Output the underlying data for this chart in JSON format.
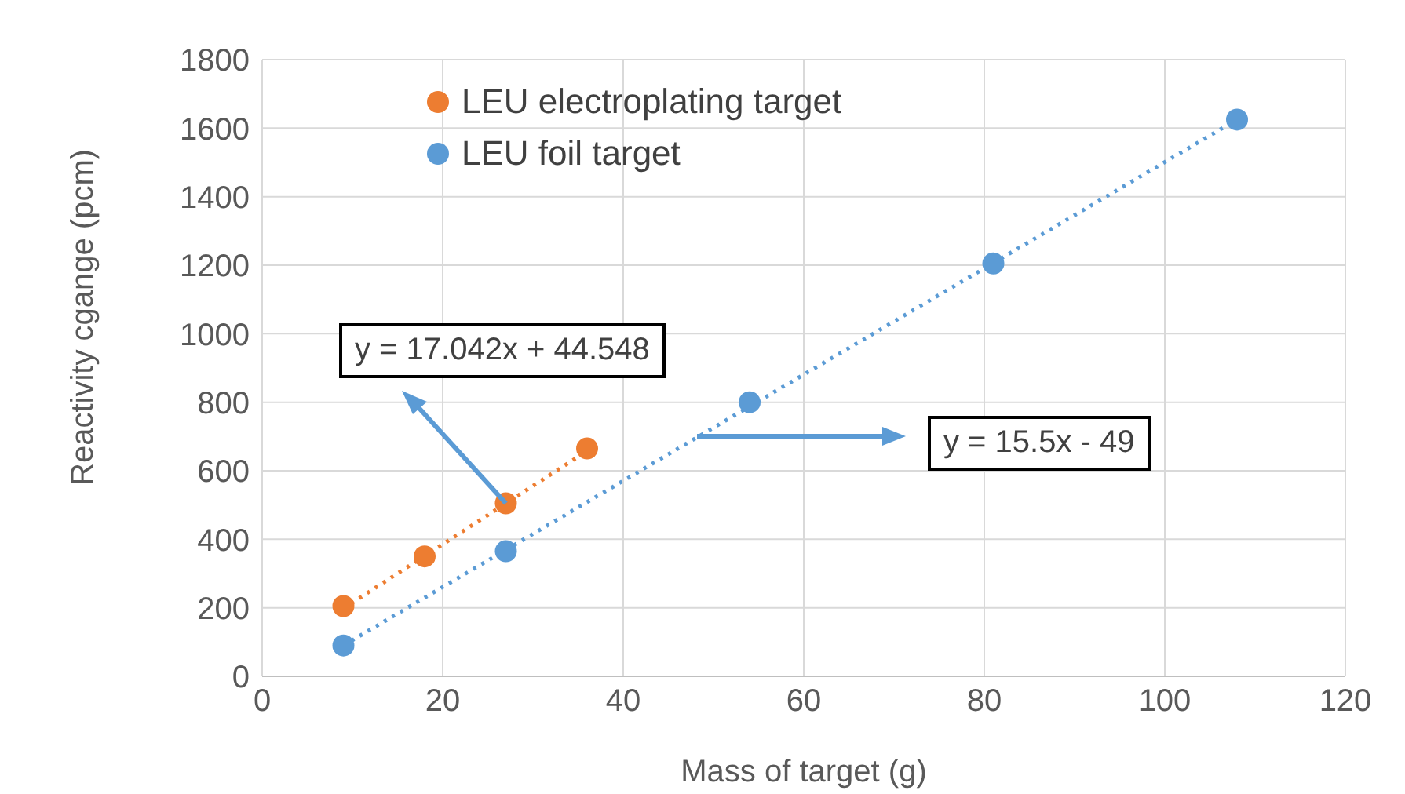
{
  "chart_data": {
    "type": "scatter",
    "xlabel": "Mass of target (g)",
    "ylabel": "Reactivity  cgange (pcm)",
    "xlim": [
      0,
      120
    ],
    "xticks": [
      0,
      20,
      40,
      60,
      80,
      100,
      120
    ],
    "ylim": [
      0,
      1800
    ],
    "yticks": [
      0,
      200,
      400,
      600,
      800,
      1000,
      1200,
      1400,
      1600,
      1800
    ],
    "grid": true,
    "legend": "top left",
    "marker": "circle",
    "series": [
      {
        "name": "LEU electroplating target",
        "color": "#ed7d31",
        "x": [
          9,
          18,
          27,
          36
        ],
        "values": [
          205,
          350,
          505,
          665
        ]
      },
      {
        "name": "LEU foil target",
        "color": "#5b9bd5",
        "x": [
          9,
          27,
          54,
          81,
          108
        ],
        "values": [
          90,
          365,
          800,
          1205,
          1625
        ]
      },
      {
        "type": "line",
        "color": "#ed7d31",
        "line_style": "dotted",
        "marker": "none",
        "x": [
          9,
          36
        ],
        "values": [
          198,
          658
        ]
      },
      {
        "type": "line",
        "color": "#5b9bd5",
        "line_style": "dotted",
        "marker": "none",
        "x": [
          9,
          108
        ],
        "values": [
          90,
          1625
        ]
      }
    ],
    "annotations": [
      {
        "text": "y = 17.042x + 44.548",
        "x": 27,
        "y": 505
      },
      "y = 15.5x - 49"
    ]
  }
}
